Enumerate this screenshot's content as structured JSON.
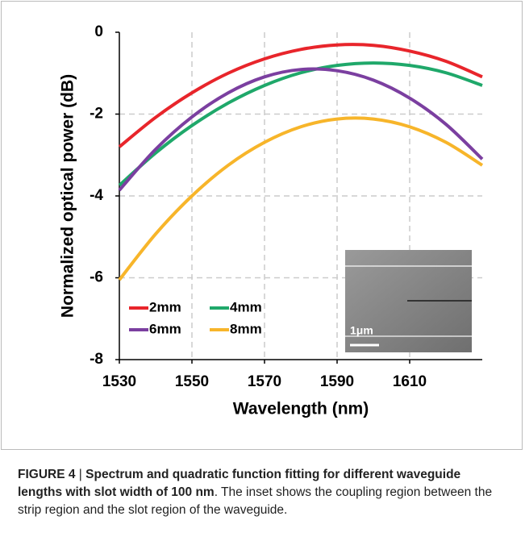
{
  "chart_data": {
    "type": "line",
    "xlabel": "Wavelength (nm)",
    "ylabel": "Normalized optical power (dB)",
    "x": [
      1530,
      1540,
      1550,
      1560,
      1570,
      1580,
      1590,
      1600,
      1610,
      1620,
      1630
    ],
    "series": [
      {
        "name": "2mm",
        "color": "#e8252b",
        "values": [
          -2.8,
          -2.08,
          -1.48,
          -1.0,
          -0.65,
          -0.42,
          -0.31,
          -0.32,
          -0.46,
          -0.71,
          -1.09
        ]
      },
      {
        "name": "4mm",
        "color": "#1fa86a",
        "values": [
          -3.74,
          -2.95,
          -2.28,
          -1.73,
          -1.3,
          -0.99,
          -0.81,
          -0.75,
          -0.81,
          -0.99,
          -1.3
        ]
      },
      {
        "name": "6mm",
        "color": "#7b3fa0",
        "values": [
          -3.86,
          -2.86,
          -2.07,
          -1.48,
          -1.09,
          -0.91,
          -0.94,
          -1.17,
          -1.61,
          -2.25,
          -3.1
        ]
      },
      {
        "name": "8mm",
        "color": "#f7b52a",
        "values": [
          -6.05,
          -4.93,
          -4.0,
          -3.25,
          -2.69,
          -2.31,
          -2.12,
          -2.12,
          -2.31,
          -2.69,
          -3.25
        ]
      }
    ],
    "xlim": [
      1530,
      1630
    ],
    "xticks": [
      1530,
      1550,
      1570,
      1590,
      1610
    ],
    "ylim": [
      -8,
      0
    ],
    "yticks": [
      0,
      -2,
      -4,
      -6,
      -8
    ],
    "grid": true,
    "legend_position": "lower left",
    "inset_label": "1μm"
  },
  "caption": {
    "label": "FIGURE 4",
    "separator": "|",
    "title": "Spectrum and quadratic function fitting for different waveguide lengths with slot width of 100 nm",
    "text": ". The inset shows the coupling region between the strip region and the slot region of the waveguide."
  }
}
